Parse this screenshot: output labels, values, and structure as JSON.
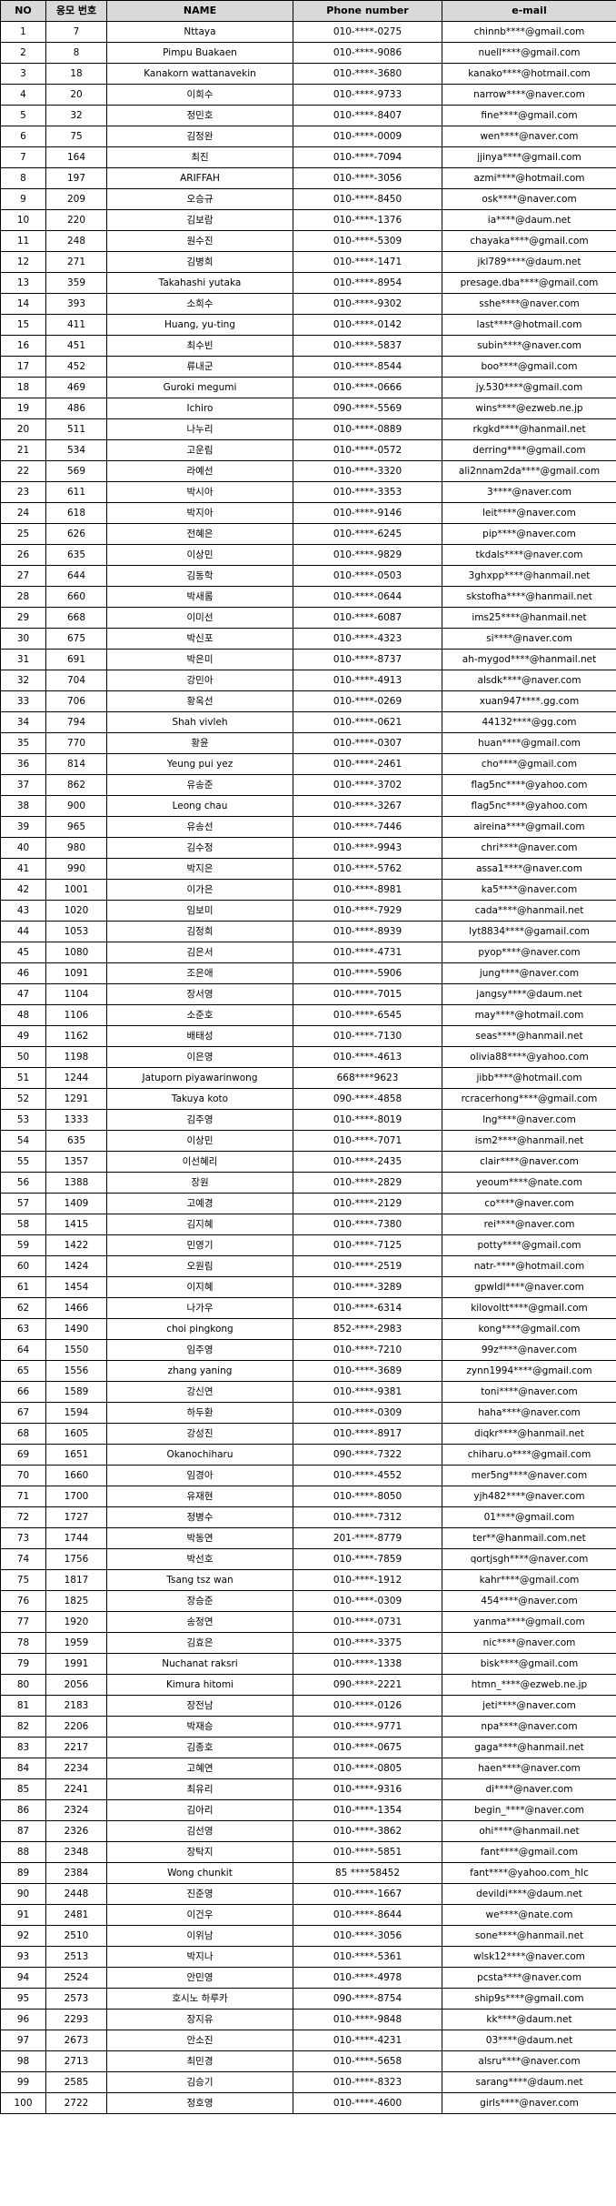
{
  "headers": [
    "NO",
    "응모 번호",
    "NAME",
    "Phone number",
    "e-mail"
  ],
  "rows": [
    [
      "1",
      "7",
      "Nttaya",
      "010-****-0275",
      "chinnb****@gmail.com"
    ],
    [
      "2",
      "8",
      "Pimpu Buakaen",
      "010-****-9086",
      "nuell****@gmail.com"
    ],
    [
      "3",
      "18",
      "Kanakorn wattanavekin",
      "010-****-3680",
      "kanako****@hotmail.com"
    ],
    [
      "4",
      "20",
      "이희수",
      "010-****-9733",
      "narrow****@naver.com"
    ],
    [
      "5",
      "32",
      "정민호",
      "010-****-8407",
      "fine****@gmail.com"
    ],
    [
      "6",
      "75",
      "김정완",
      "010-****-0009",
      "wen****@naver.com"
    ],
    [
      "7",
      "164",
      "최진",
      "010-****-7094",
      "jjinya****@gmail.com"
    ],
    [
      "8",
      "197",
      "ARIFFAH",
      "010-****-3056",
      "azmi****@hotmail.com"
    ],
    [
      "9",
      "209",
      "오승규",
      "010-****-8450",
      "osk****@naver.com"
    ],
    [
      "10",
      "220",
      "김보람",
      "010-****-1376",
      "ia****@daum.net"
    ],
    [
      "11",
      "248",
      "원수진",
      "010-****-5309",
      "chayaka****@gmail.com"
    ],
    [
      "12",
      "271",
      "김병희",
      "010-****-1471",
      "jkl789****@daum.net"
    ],
    [
      "13",
      "359",
      "Takahashi yutaka",
      "010-****-8954",
      "presage.dba****@gmail.com"
    ],
    [
      "14",
      "393",
      "소희수",
      "010-****-9302",
      "sshe****@naver.com"
    ],
    [
      "15",
      "411",
      "Huang, yu-ting",
      "010-****-0142",
      "last****@hotmail.com"
    ],
    [
      "16",
      "451",
      "최수빈",
      "010-****-5837",
      "subin****@naver.com"
    ],
    [
      "17",
      "452",
      "류내군",
      "010-****-8544",
      "boo****@gmail.com"
    ],
    [
      "18",
      "469",
      "Guroki megumi",
      "010-****-0666",
      "jy.530****@gmail.com"
    ],
    [
      "19",
      "486",
      "Ichiro",
      "090-****-5569",
      "wins****@ezweb.ne.jp"
    ],
    [
      "20",
      "511",
      "나누리",
      "010-****-0889",
      "rkgkd****@hanmail.net"
    ],
    [
      "21",
      "534",
      "고운림",
      "010-****-0572",
      "derring****@gmail.com"
    ],
    [
      "22",
      "569",
      "라예선",
      "010-****-3320",
      "ali2nnam2da****@gmail.com"
    ],
    [
      "23",
      "611",
      "박시아",
      "010-****-3353",
      "3****@naver.com"
    ],
    [
      "24",
      "618",
      "박지아",
      "010-****-9146",
      "leit****@naver.com"
    ],
    [
      "25",
      "626",
      "전혜은",
      "010-****-6245",
      "pip****@naver.com"
    ],
    [
      "26",
      "635",
      "이상민",
      "010-****-9829",
      "tkdals****@naver.com"
    ],
    [
      "27",
      "644",
      "김동학",
      "010-****-0503",
      "3ghxpp****@hanmail.net"
    ],
    [
      "28",
      "660",
      "박새롬",
      "010-****-0644",
      "skstofha****@hanmail.net"
    ],
    [
      "29",
      "668",
      "이미선",
      "010-****-6087",
      "ims25****@hanmail.net"
    ],
    [
      "30",
      "675",
      "박신포",
      "010-****-4323",
      "si****@naver.com"
    ],
    [
      "31",
      "691",
      "박은미",
      "010-****-8737",
      "ah-mygod****@hanmail.net"
    ],
    [
      "32",
      "704",
      "강민아",
      "010-****-4913",
      "alsdk****@naver.com"
    ],
    [
      "33",
      "706",
      "황옥선",
      "010-****-0269",
      "xuan947****.gg.com"
    ],
    [
      "34",
      "794",
      "Shah vivleh",
      "010-****-0621",
      "44132****@gg.com"
    ],
    [
      "35",
      "770",
      "황윤",
      "010-****-0307",
      "huan****@gmail.com"
    ],
    [
      "36",
      "814",
      "Yeung pui yez",
      "010-****-2461",
      "cho****@gmail.com"
    ],
    [
      "37",
      "862",
      "유송준",
      "010-****-3702",
      "flag5nc****@yahoo.com"
    ],
    [
      "38",
      "900",
      "Leong chau",
      "010-****-3267",
      "flag5nc****@yahoo.com"
    ],
    [
      "39",
      "965",
      "유송선",
      "010-****-7446",
      "aireina****@gmail.com"
    ],
    [
      "40",
      "980",
      "김수정",
      "010-****-9943",
      "chri****@naver.com"
    ],
    [
      "41",
      "990",
      "박지은",
      "010-****-5762",
      "assa1****@naver.com"
    ],
    [
      "42",
      "1001",
      "이가은",
      "010-****-8981",
      "ka5****@naver.com"
    ],
    [
      "43",
      "1020",
      "임보미",
      "010-****-7929",
      "cada****@hanmail.net"
    ],
    [
      "44",
      "1053",
      "김정희",
      "010-****-8939",
      "lyt8834****@gamail.com"
    ],
    [
      "45",
      "1080",
      "김은서",
      "010-****-4731",
      "pyop****@naver.com"
    ],
    [
      "46",
      "1091",
      "조은애",
      "010-****-5906",
      "jung****@naver.com"
    ],
    [
      "47",
      "1104",
      "장서영",
      "010-****-7015",
      "jangsy****@daum.net"
    ],
    [
      "48",
      "1106",
      "소준호",
      "010-****-6545",
      "may****@hotmail.com"
    ],
    [
      "49",
      "1162",
      "배태성",
      "010-****-7130",
      "seas****@hanmail.net"
    ],
    [
      "50",
      "1198",
      "이은영",
      "010-****-4613",
      "olivia88****@yahoo.com"
    ],
    [
      "51",
      "1244",
      "Jatuporn piyawarinwong",
      "668****9623",
      "jibb****@hotmail.com"
    ],
    [
      "52",
      "1291",
      "Takuya koto",
      "090-****-4858",
      "rcracerhong****@gmail.com"
    ],
    [
      "53",
      "1333",
      "김주영",
      "010-****-8019",
      "lng****@naver.com"
    ],
    [
      "54",
      "635",
      "이상민",
      "010-****-7071",
      "ism2****@hanmail.net"
    ],
    [
      "55",
      "1357",
      "이선혜리",
      "010-****-2435",
      "clair****@naver.com"
    ],
    [
      "56",
      "1388",
      "장원",
      "010-****-2829",
      "yeoum****@nate.com"
    ],
    [
      "57",
      "1409",
      "고예경",
      "010-****-2129",
      "co****@naver.com"
    ],
    [
      "58",
      "1415",
      "김지혜",
      "010-****-7380",
      "rei****@naver.com"
    ],
    [
      "59",
      "1422",
      "민영기",
      "010-****-7125",
      "potty****@gmail.com"
    ],
    [
      "60",
      "1424",
      "오원림",
      "010-****-2519",
      "natr-****@hotmail.com"
    ],
    [
      "61",
      "1454",
      "이지혜",
      "010-****-3289",
      "gpwldl****@naver.com"
    ],
    [
      "62",
      "1466",
      "나가우",
      "010-****-6314",
      "kilovoltt****@gmail.com"
    ],
    [
      "63",
      "1490",
      "choi pingkong",
      "852-****-2983",
      "kong****@gmail.com"
    ],
    [
      "64",
      "1550",
      "임주영",
      "010-****-7210",
      "99z****@naver.com"
    ],
    [
      "65",
      "1556",
      "zhang yaning",
      "010-****-3689",
      "zynn1994****@gmail.com"
    ],
    [
      "66",
      "1589",
      "강신연",
      "010-****-9381",
      "toni****@naver.com"
    ],
    [
      "67",
      "1594",
      "하두환",
      "010-****-0309",
      "haha****@naver.com"
    ],
    [
      "68",
      "1605",
      "강성진",
      "010-****-8917",
      "diqkr****@hanmail.net"
    ],
    [
      "69",
      "1651",
      "Okanochiharu",
      "090-****-7322",
      "chiharu.o****@gmail.com"
    ],
    [
      "70",
      "1660",
      "임경아",
      "010-****-4552",
      "mer5ng****@naver.com"
    ],
    [
      "71",
      "1700",
      "유재현",
      "010-****-8050",
      "yjh482****@naver.com"
    ],
    [
      "72",
      "1727",
      "정병수",
      "010-****-7312",
      "01****@gmail.com"
    ],
    [
      "73",
      "1744",
      "박동연",
      "201-****-8779",
      "ter**@hanmail.com.net"
    ],
    [
      "74",
      "1756",
      "박선호",
      "010-****-7859",
      "qortjsgh****@naver.com"
    ],
    [
      "75",
      "1817",
      "Tsang tsz wan",
      "010-****-1912",
      "kahr****@gmail.com"
    ],
    [
      "76",
      "1825",
      "장승준",
      "010-****-0309",
      "454****@naver.com"
    ],
    [
      "77",
      "1920",
      "송정연",
      "010-****-0731",
      "yanma****@gmail.com"
    ],
    [
      "78",
      "1959",
      "김효은",
      "010-****-3375",
      "nic****@naver.com"
    ],
    [
      "79",
      "1991",
      "Nuchanat raksri",
      "010-****-1338",
      "bisk****@gmail.com"
    ],
    [
      "80",
      "2056",
      "Kimura hitomi",
      "090-****-2221",
      "htmn_****@ezweb.ne.jp"
    ],
    [
      "81",
      "2183",
      "장전남",
      "010-****-0126",
      "jeti****@naver.com"
    ],
    [
      "82",
      "2206",
      "박재승",
      "010-****-9771",
      "npa****@naver.com"
    ],
    [
      "83",
      "2217",
      "김종호",
      "010-****-0675",
      "gaga****@hanmail.net"
    ],
    [
      "84",
      "2234",
      "고혜연",
      "010-****-0805",
      "haen****@naver.com"
    ],
    [
      "85",
      "2241",
      "최유리",
      "010-****-9316",
      "di****@naver.com"
    ],
    [
      "86",
      "2324",
      "김아리",
      "010-****-1354",
      "begin_****@naver.com"
    ],
    [
      "87",
      "2326",
      "김선영",
      "010-****-3862",
      "ohi****@hanmail.net"
    ],
    [
      "88",
      "2348",
      "장탁지",
      "010-****-5851",
      "fant****@gmail.com"
    ],
    [
      "89",
      "2384",
      "Wong chunkit",
      "85 ****58452",
      "fant****@yahoo.com_hlc"
    ],
    [
      "90",
      "2448",
      "진준영",
      "010-****-1667",
      "devildi****@daum.net"
    ],
    [
      "91",
      "2481",
      "이건우",
      "010-****-8644",
      "we****@nate.com"
    ],
    [
      "92",
      "2510",
      "이위남",
      "010-****-3056",
      "sone****@hanmail.net"
    ],
    [
      "93",
      "2513",
      "박지나",
      "010-****-5361",
      "wlsk12****@naver.com"
    ],
    [
      "94",
      "2524",
      "안민영",
      "010-****-4978",
      "pcsta****@naver.com"
    ],
    [
      "95",
      "2573",
      "호시노 하루카",
      "090-****-8754",
      "ship9s****@gmail.com"
    ],
    [
      "96",
      "2293",
      "장지유",
      "010-****-9848",
      "kk****@daum.net"
    ],
    [
      "97",
      "2673",
      "안소진",
      "010-****-4231",
      "03****@daum.net"
    ],
    [
      "98",
      "2713",
      "최민경",
      "010-****-5658",
      "alsru****@naver.com"
    ],
    [
      "99",
      "2585",
      "김승기",
      "010-****-8323",
      "sarang****@daum.net"
    ],
    [
      "100",
      "2722",
      "정호영",
      "010-****-4600",
      "girls****@naver.com"
    ]
  ]
}
